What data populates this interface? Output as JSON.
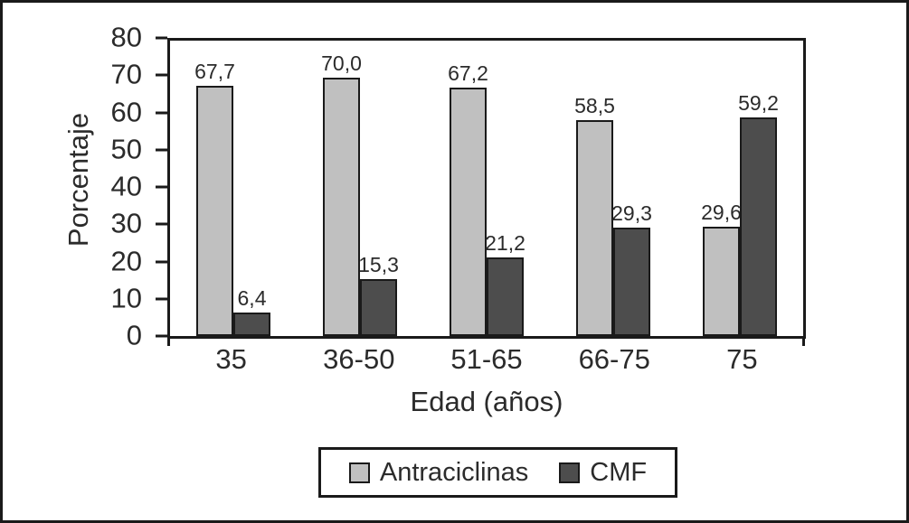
{
  "figure": {
    "background": "#ffffff",
    "frame_color": "#1a1a1a"
  },
  "chart_data": {
    "type": "bar",
    "title": "",
    "categories": [
      "35",
      "36-50",
      "51-65",
      "66-75",
      "75"
    ],
    "series": [
      {
        "name": "Antraciclinas",
        "slug": "antraciclinas",
        "color": "#c0c0c0",
        "values": [
          67.7,
          70.0,
          67.2,
          58.5,
          29.6
        ],
        "value_labels": [
          "67,7",
          "70,0",
          "67,2",
          "58,5",
          "29,6"
        ]
      },
      {
        "name": "CMF",
        "slug": "cmf",
        "color": "#4d4d4d",
        "values": [
          6.4,
          15.3,
          21.2,
          29.3,
          59.2
        ],
        "value_labels": [
          "6,4",
          "15,3",
          "21,2",
          "29,3",
          "59,2"
        ]
      }
    ],
    "xlabel": "Edad (años)",
    "ylabel": "Porcentaje",
    "ylim": [
      0,
      80
    ],
    "yticks": [
      "0",
      "10",
      "20",
      "30",
      "40",
      "50",
      "60",
      "70",
      "80"
    ],
    "grid": false,
    "legend_position": "bottom-boxed",
    "decimal_separator": ","
  }
}
